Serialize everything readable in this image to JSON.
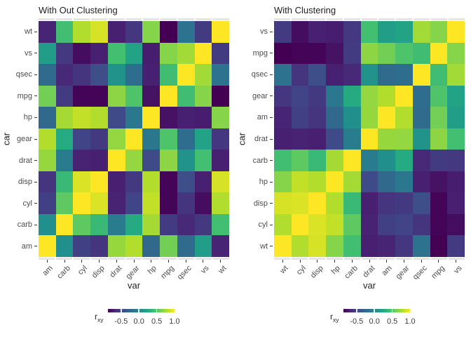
{
  "palette": {
    "viridis": [
      "#440154",
      "#482576",
      "#414487",
      "#35608D",
      "#2A788E",
      "#21908C",
      "#22A884",
      "#43BF71",
      "#7AD151",
      "#BBDF27",
      "#FDE725"
    ],
    "panel_border": "#e5e5e5",
    "axis_text": "#4d4d4d",
    "title_text": "#1f1f1f",
    "tick_mark": "#333333",
    "background": "#ffffff"
  },
  "chart_data": {
    "type": "heatmap",
    "description": "Correlation heatmaps of mtcars variables, unclustered vs clustered ordering",
    "variables": [
      "mpg",
      "cyl",
      "disp",
      "hp",
      "drat",
      "wt",
      "qsec",
      "vs",
      "am",
      "gear",
      "carb"
    ],
    "correlation_matrix": [
      [
        1.0,
        -0.85,
        -0.85,
        -0.78,
        0.68,
        -0.87,
        0.42,
        0.66,
        0.6,
        0.48,
        -0.55
      ],
      [
        -0.85,
        1.0,
        0.9,
        0.83,
        -0.7,
        0.78,
        -0.59,
        -0.81,
        -0.52,
        -0.49,
        0.53
      ],
      [
        -0.85,
        0.9,
        1.0,
        0.79,
        -0.71,
        0.89,
        -0.43,
        -0.71,
        -0.59,
        -0.56,
        0.39
      ],
      [
        -0.78,
        0.83,
        0.79,
        1.0,
        -0.45,
        0.66,
        -0.71,
        -0.72,
        -0.24,
        -0.13,
        0.75
      ],
      [
        0.68,
        -0.7,
        -0.71,
        -0.45,
        1.0,
        -0.71,
        0.09,
        0.44,
        0.71,
        0.7,
        -0.09
      ],
      [
        -0.87,
        0.78,
        0.89,
        0.66,
        -0.71,
        1.0,
        -0.17,
        -0.55,
        -0.69,
        -0.58,
        0.43
      ],
      [
        0.42,
        -0.59,
        -0.43,
        -0.71,
        0.09,
        -0.17,
        1.0,
        0.74,
        -0.23,
        -0.21,
        -0.66
      ],
      [
        0.66,
        -0.81,
        -0.71,
        -0.72,
        0.44,
        -0.55,
        0.74,
        1.0,
        0.17,
        0.21,
        -0.57
      ],
      [
        0.6,
        -0.52,
        -0.59,
        -0.24,
        0.71,
        -0.69,
        -0.23,
        0.17,
        1.0,
        0.79,
        0.06
      ],
      [
        0.48,
        -0.49,
        -0.56,
        -0.13,
        0.7,
        -0.58,
        -0.21,
        0.21,
        0.79,
        1.0,
        0.27
      ],
      [
        -0.55,
        0.53,
        0.39,
        0.75,
        -0.09,
        0.43,
        -0.66,
        -0.57,
        0.06,
        0.27,
        1.0
      ]
    ],
    "scale_domain": [
      -0.87,
      1.0
    ],
    "colormap": "viridis",
    "panels": [
      {
        "title": "With Out Clustering",
        "xlabel": "var",
        "ylabel": "car",
        "x_order": [
          "am",
          "carb",
          "cyl",
          "disp",
          "drat",
          "gear",
          "hp",
          "mpg",
          "qsec",
          "vs",
          "wt"
        ],
        "y_order_top_to_bottom": [
          "wt",
          "vs",
          "qsec",
          "mpg",
          "hp",
          "gear",
          "drat",
          "disp",
          "cyl",
          "carb",
          "am"
        ]
      },
      {
        "title": "With Clustering",
        "xlabel": "var",
        "ylabel": "car",
        "x_order": [
          "wt",
          "cyl",
          "disp",
          "hp",
          "carb",
          "drat",
          "am",
          "gear",
          "qsec",
          "mpg",
          "vs"
        ],
        "y_order_top_to_bottom": [
          "vs",
          "mpg",
          "qsec",
          "gear",
          "am",
          "drat",
          "carb",
          "hp",
          "disp",
          "cyl",
          "wt"
        ]
      }
    ],
    "legend": {
      "label_main": "r",
      "label_sub": "xy",
      "tick_labels": [
        "-0.5",
        "0.0",
        "0.5",
        "1.0"
      ],
      "tick_values": [
        -0.5,
        0.0,
        0.5,
        1.0
      ],
      "position": "bottom"
    }
  }
}
